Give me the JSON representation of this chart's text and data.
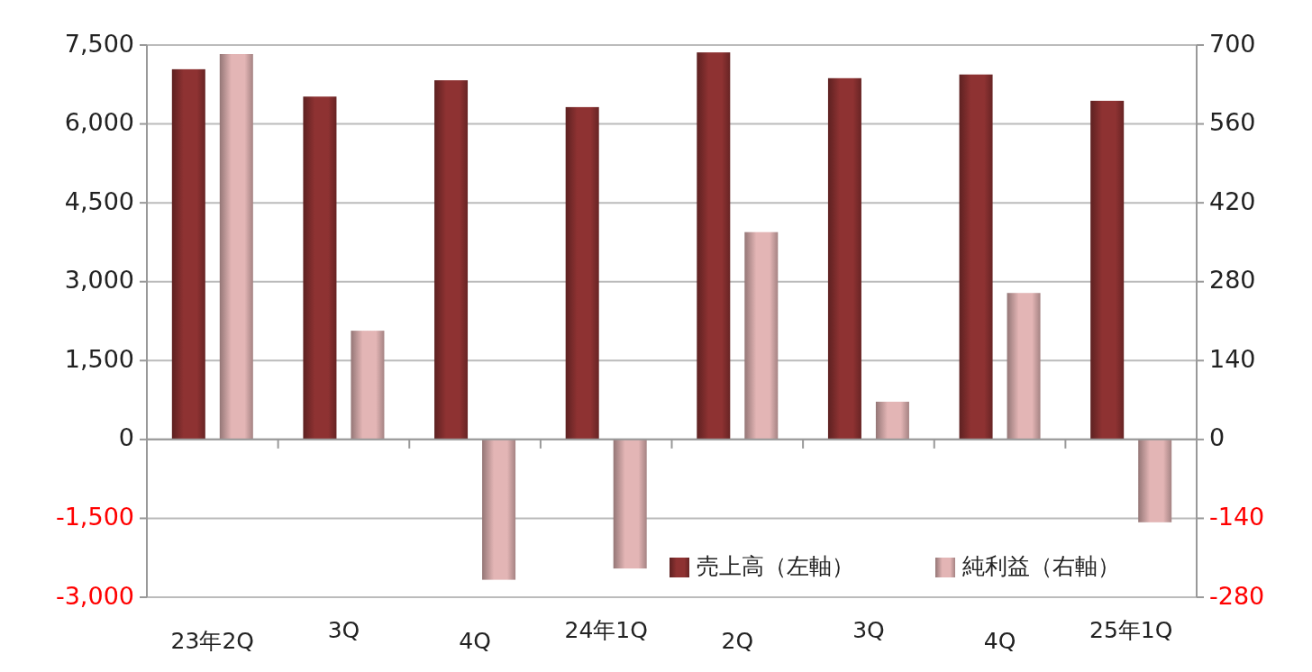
{
  "chart_data": {
    "type": "bar",
    "categories": [
      "23年2Q",
      "3Q",
      "4Q",
      "24年1Q",
      "2Q",
      "3Q",
      "4Q",
      "25年1Q"
    ],
    "series": [
      {
        "name": "売上高（左軸）",
        "color": "#8e3232",
        "values": [
          7040,
          6520,
          6830,
          6320,
          7360,
          6870,
          6940,
          6440
        ]
      },
      {
        "name": "純利益（右軸）",
        "color": "#e3b5b5",
        "axis": "y2",
        "values": [
          684,
          193,
          -249,
          -229,
          368,
          67,
          260,
          -147
        ]
      }
    ],
    "ylim": [
      -3000,
      7500
    ],
    "yticks": [
      {
        "value": -3000,
        "label": "-3,000"
      },
      {
        "value": -1500,
        "label": "-1,500"
      },
      0,
      {
        "value": 1500,
        "label": "1,500"
      },
      {
        "value": 3000,
        "label": "3,000"
      },
      {
        "value": 4500,
        "label": "4,500"
      },
      {
        "value": 6000,
        "label": "6,000"
      },
      {
        "value": 7500,
        "label": "7,500"
      }
    ],
    "y2lim": [
      -280,
      700
    ],
    "y2ticks": [
      -280,
      -140,
      0,
      140,
      280,
      420,
      560,
      700
    ],
    "grid": "y",
    "legend": "bottom right"
  }
}
